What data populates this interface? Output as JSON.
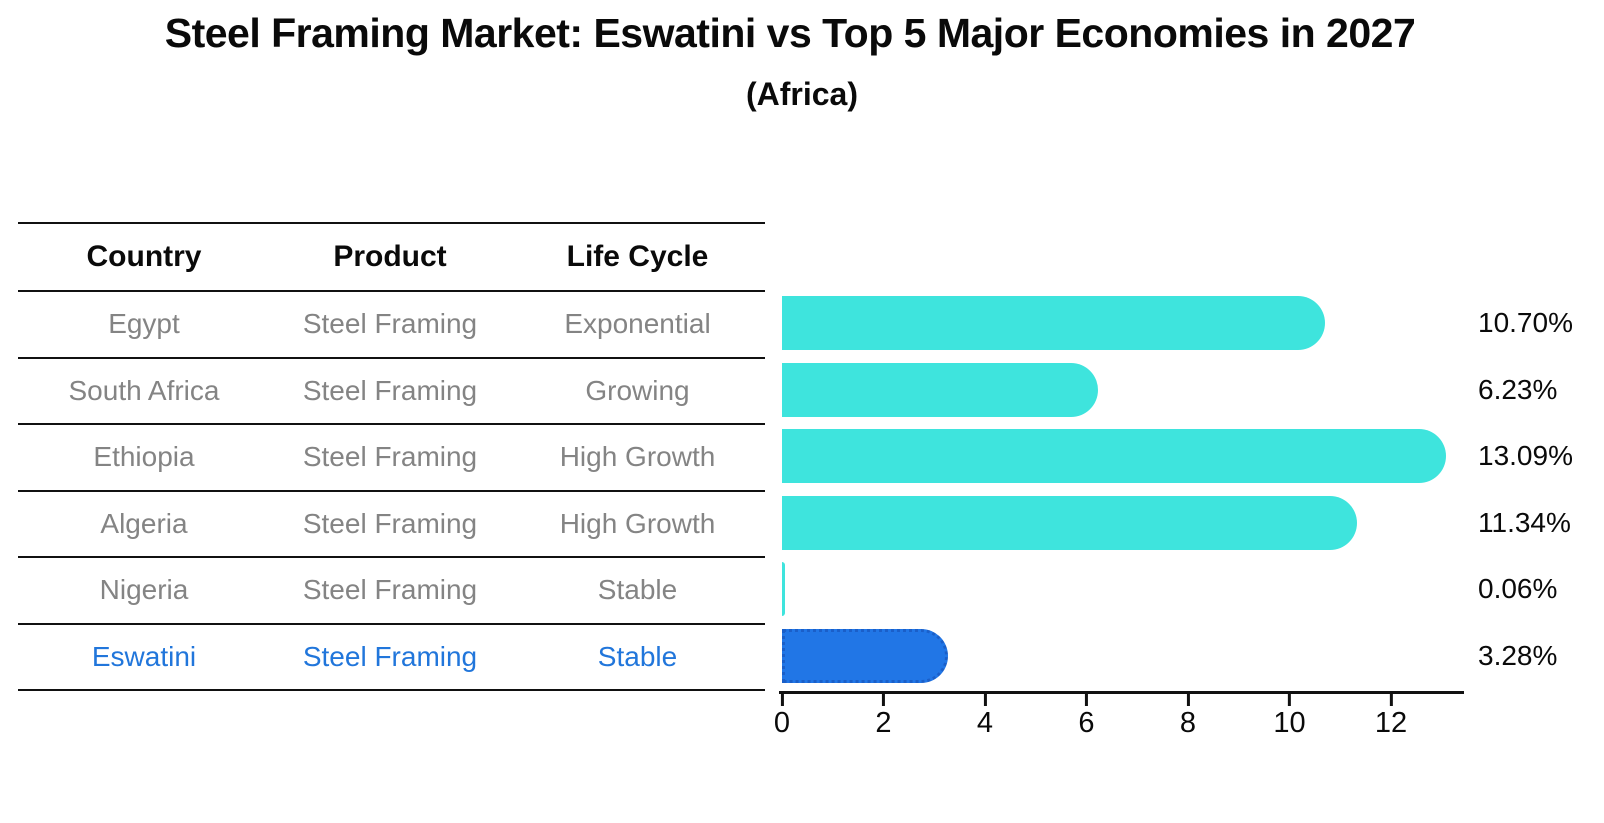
{
  "title": "Steel Framing Market: Eswatini vs Top 5 Major Economies in 2027",
  "subtitle": "(Africa)",
  "table": {
    "headers": {
      "country": "Country",
      "product": "Product",
      "life_cycle": "Life Cycle"
    },
    "rows": [
      {
        "country": "Egypt",
        "product": "Steel Framing",
        "life_cycle": "Exponential",
        "highlight": false
      },
      {
        "country": "South Africa",
        "product": "Steel Framing",
        "life_cycle": "Growing",
        "highlight": false
      },
      {
        "country": "Ethiopia",
        "product": "Steel Framing",
        "life_cycle": "High Growth",
        "highlight": false
      },
      {
        "country": "Algeria",
        "product": "Steel Framing",
        "life_cycle": "High Growth",
        "highlight": false
      },
      {
        "country": "Nigeria",
        "product": "Steel Framing",
        "life_cycle": "Stable",
        "highlight": false
      },
      {
        "country": "Eswatini",
        "product": "Steel Framing",
        "life_cycle": "Stable",
        "highlight": true
      }
    ]
  },
  "chart_data": {
    "type": "bar",
    "orientation": "horizontal",
    "title": "Steel Framing Market: Eswatini vs Top 5 Major Economies in 2027",
    "subtitle": "(Africa)",
    "categories": [
      "Egypt",
      "South Africa",
      "Ethiopia",
      "Algeria",
      "Nigeria",
      "Eswatini"
    ],
    "values": [
      10.7,
      6.23,
      13.09,
      11.34,
      0.06,
      3.28
    ],
    "value_labels": [
      "10.70%",
      "6.23%",
      "13.09%",
      "11.34%",
      "0.06%",
      "3.28%"
    ],
    "x_ticks": [
      0,
      2,
      4,
      6,
      8,
      10,
      12
    ],
    "xlim": [
      0,
      13.4
    ],
    "grid": false,
    "legend": "none",
    "highlight_index": 5
  },
  "colors": {
    "background": "#ffffff",
    "ink": "#0a0a0a",
    "header_text": "#0a0a0a",
    "cell_text": "#848484",
    "line": "#111111",
    "axis": "#111111",
    "value_text": "#0a0a0a",
    "bar_fill": "#3ee4dd",
    "highlight_fill": "#2176e6",
    "highlight_border": "#1a5fc9",
    "highlight_text": "#2176db"
  }
}
